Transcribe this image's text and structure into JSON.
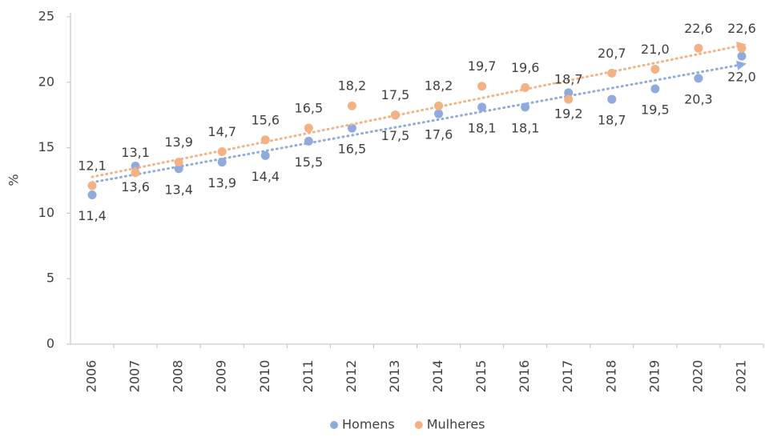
{
  "chart_data": {
    "type": "scatter",
    "y_label": "%",
    "categories": [
      "2006",
      "2007",
      "2008",
      "2009",
      "2010",
      "2011",
      "2012",
      "2013",
      "2014",
      "2015",
      "2016",
      "2017",
      "2018",
      "2019",
      "2020",
      "2021"
    ],
    "series": [
      {
        "name": "Homens",
        "color": "#8faadc",
        "values": [
          11.4,
          13.6,
          13.4,
          13.9,
          14.4,
          15.5,
          16.5,
          17.5,
          17.6,
          18.1,
          18.1,
          19.2,
          18.7,
          19.5,
          20.3,
          22.0
        ],
        "value_labels": [
          "11,4",
          "13,6",
          "13,4",
          "13,9",
          "14,4",
          "15,5",
          "16,5",
          "17,5",
          "17,6",
          "18,1",
          "18,1",
          "19,2",
          "18,7",
          "19,5",
          "20,3",
          "22,0"
        ]
      },
      {
        "name": "Mulheres",
        "color": "#f4b183",
        "values": [
          12.1,
          13.1,
          13.9,
          14.7,
          15.6,
          16.5,
          18.2,
          17.5,
          18.2,
          19.7,
          19.6,
          18.7,
          20.7,
          21.0,
          22.6,
          22.6
        ],
        "value_labels": [
          "12,1",
          "13,1",
          "13,9",
          "14,7",
          "15,6",
          "16,5",
          "18,2",
          "17,5",
          "18,2",
          "19,7",
          "19,6",
          "18,7",
          "20,7",
          "21,0",
          "22,6",
          "22,6"
        ]
      }
    ],
    "ylim": [
      0,
      25
    ],
    "yticks": [
      0,
      5,
      10,
      15,
      20,
      25
    ],
    "trendline": true,
    "grid": false,
    "legend": "bottom"
  }
}
